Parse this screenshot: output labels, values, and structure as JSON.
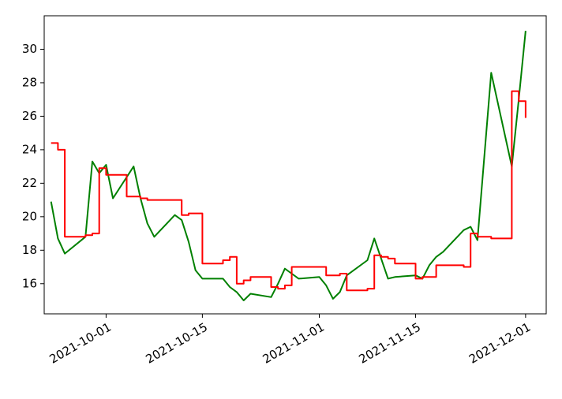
{
  "chart_data": {
    "type": "line",
    "title": "",
    "xlabel": "",
    "ylabel": "",
    "x_ticks": [
      "2021-10-01",
      "2021-10-15",
      "2021-11-01",
      "2021-11-15",
      "2021-12-01"
    ],
    "y_ticks": [
      16,
      18,
      20,
      22,
      24,
      26,
      28,
      30
    ],
    "xlim": [
      "2021-09-22",
      "2021-12-04"
    ],
    "ylim": [
      14.2,
      32.0
    ],
    "grid": false,
    "series": [
      {
        "color": "#008000",
        "style": "line",
        "x": [
          "2021-09-23",
          "2021-09-24",
          "2021-09-25",
          "2021-09-28",
          "2021-09-29",
          "2021-09-30",
          "2021-10-01",
          "2021-10-02",
          "2021-10-05",
          "2021-10-06",
          "2021-10-07",
          "2021-10-08",
          "2021-10-11",
          "2021-10-12",
          "2021-10-13",
          "2021-10-14",
          "2021-10-15",
          "2021-10-18",
          "2021-10-19",
          "2021-10-20",
          "2021-10-21",
          "2021-10-22",
          "2021-10-25",
          "2021-10-26",
          "2021-10-27",
          "2021-10-28",
          "2021-10-29",
          "2021-11-01",
          "2021-11-02",
          "2021-11-03",
          "2021-11-04",
          "2021-11-05",
          "2021-11-08",
          "2021-11-09",
          "2021-11-10",
          "2021-11-11",
          "2021-11-12",
          "2021-11-15",
          "2021-11-16",
          "2021-11-17",
          "2021-11-18",
          "2021-11-19",
          "2021-11-22",
          "2021-11-23",
          "2021-11-24",
          "2021-11-26",
          "2021-11-29",
          "2021-11-30",
          "2021-12-01"
        ],
        "values": [
          20.9,
          18.7,
          17.8,
          18.8,
          23.3,
          22.6,
          23.1,
          21.1,
          23.0,
          21.1,
          19.6,
          18.8,
          20.1,
          19.8,
          18.5,
          16.8,
          16.3,
          16.3,
          15.8,
          15.5,
          15.0,
          15.4,
          15.2,
          16.0,
          16.9,
          16.6,
          16.3,
          16.4,
          15.9,
          15.1,
          15.5,
          16.5,
          17.4,
          18.7,
          17.5,
          16.3,
          16.4,
          16.5,
          16.3,
          17.1,
          17.6,
          17.9,
          19.2,
          19.4,
          18.6,
          28.6,
          23.0,
          27.0,
          31.1
        ]
      },
      {
        "color": "#ff0000",
        "style": "step",
        "x": [
          "2021-09-23",
          "2021-09-24",
          "2021-09-25",
          "2021-09-28",
          "2021-09-29",
          "2021-09-30",
          "2021-10-01",
          "2021-10-04",
          "2021-10-06",
          "2021-10-07",
          "2021-10-11",
          "2021-10-12",
          "2021-10-13",
          "2021-10-14",
          "2021-10-15",
          "2021-10-18",
          "2021-10-19",
          "2021-10-20",
          "2021-10-21",
          "2021-10-22",
          "2021-10-25",
          "2021-10-26",
          "2021-10-27",
          "2021-10-28",
          "2021-10-29",
          "2021-11-01",
          "2021-11-02",
          "2021-11-03",
          "2021-11-04",
          "2021-11-05",
          "2021-11-08",
          "2021-11-09",
          "2021-11-10",
          "2021-11-11",
          "2021-11-12",
          "2021-11-15",
          "2021-11-16",
          "2021-11-17",
          "2021-11-18",
          "2021-11-22",
          "2021-11-23",
          "2021-11-24",
          "2021-11-26",
          "2021-11-29",
          "2021-11-30",
          "2021-12-01"
        ],
        "values": [
          24.4,
          24.0,
          18.8,
          18.9,
          19.0,
          22.9,
          22.5,
          21.2,
          21.1,
          21.0,
          21.0,
          20.1,
          20.2,
          20.2,
          17.2,
          17.4,
          17.6,
          16.0,
          16.2,
          16.4,
          15.8,
          15.7,
          15.9,
          17.0,
          17.0,
          17.0,
          16.5,
          16.5,
          16.6,
          15.6,
          15.7,
          17.7,
          17.6,
          17.5,
          17.2,
          16.3,
          16.4,
          16.4,
          17.1,
          17.0,
          19.0,
          18.8,
          18.7,
          27.5,
          26.9,
          25.9
        ]
      }
    ]
  }
}
